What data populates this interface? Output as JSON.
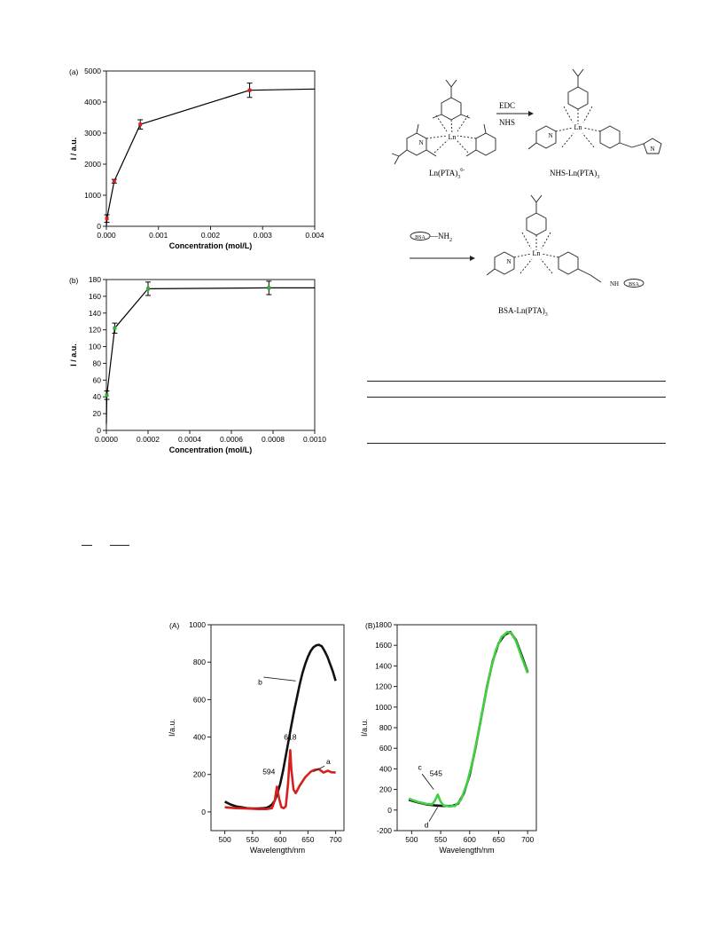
{
  "chart_data": [
    {
      "id": "a",
      "type": "line",
      "panel_label": "(a)",
      "xlabel": "Concentration (mol/L)",
      "ylabel": "I / a.u.",
      "xlim": [
        0,
        0.004
      ],
      "ylim": [
        0,
        5000
      ],
      "xticks": [
        "0.000",
        "0.001",
        "0.002",
        "0.003",
        "0.004"
      ],
      "yticks": [
        "0",
        "1000",
        "2000",
        "3000",
        "4000",
        "5000"
      ],
      "series": [
        {
          "x": [
            0.0,
            1e-05,
            0.00015,
            0.00065,
            0.00275,
            0.004
          ],
          "y": [
            0,
            250,
            1450,
            3280,
            4380,
            4420
          ],
          "err": [
            0,
            120,
            60,
            150,
            230,
            0
          ],
          "color": "#000000",
          "marker_color": "#d62020"
        }
      ]
    },
    {
      "id": "b",
      "type": "line",
      "panel_label": "(b)",
      "xlabel": "Concentration (mol/L)",
      "ylabel": "I / a.u.",
      "xlim": [
        0,
        0.001
      ],
      "ylim": [
        0,
        180
      ],
      "xticks": [
        "0.0000",
        "0.0002",
        "0.0004",
        "0.0006",
        "0.0008",
        "0.0010"
      ],
      "yticks": [
        "0",
        "20",
        "40",
        "60",
        "80",
        "100",
        "120",
        "140",
        "160",
        "180"
      ],
      "series": [
        {
          "x": [
            0.0,
            2e-06,
            4e-05,
            0.0002,
            0.00078,
            0.001
          ],
          "y": [
            8,
            42,
            122,
            169,
            170,
            170
          ],
          "err": [
            0,
            5,
            6,
            8,
            8,
            0
          ],
          "color": "#000000",
          "marker_color": "#30b030"
        }
      ]
    },
    {
      "id": "A",
      "type": "line",
      "panel_label": "(A)",
      "xlabel": "Wavelength/nm",
      "ylabel": "I/a.u.",
      "xlim": [
        475,
        715
      ],
      "ylim": [
        -100,
        1000
      ],
      "xticks": [
        "500",
        "550",
        "600",
        "650",
        "700"
      ],
      "yticks": [
        "0",
        "200",
        "400",
        "600",
        "800",
        "1000"
      ],
      "series": [
        {
          "name": "b",
          "color": "#111111",
          "x": [
            500,
            510,
            520,
            530,
            540,
            550,
            560,
            570,
            575,
            580,
            585,
            590,
            595,
            600,
            605,
            610,
            615,
            620,
            625,
            630,
            635,
            640,
            645,
            650,
            655,
            660,
            665,
            670,
            675,
            680,
            685,
            690,
            695,
            700
          ],
          "y": [
            55,
            40,
            30,
            25,
            20,
            18,
            18,
            20,
            22,
            28,
            40,
            60,
            100,
            150,
            220,
            300,
            380,
            460,
            540,
            610,
            680,
            740,
            790,
            830,
            860,
            880,
            890,
            893,
            885,
            860,
            830,
            790,
            750,
            700
          ]
        },
        {
          "name": "a",
          "color": "#d62020",
          "x": [
            500,
            520,
            540,
            560,
            575,
            585,
            590,
            594,
            598,
            602,
            606,
            610,
            614,
            618,
            620,
            624,
            628,
            635,
            645,
            655,
            662,
            670,
            678,
            686,
            692,
            700
          ],
          "y": [
            25,
            20,
            18,
            15,
            15,
            20,
            60,
            135,
            70,
            25,
            20,
            30,
            150,
            330,
            230,
            120,
            100,
            140,
            185,
            215,
            225,
            228,
            210,
            220,
            212,
            210
          ]
        }
      ],
      "annotations": [
        "594",
        "618",
        "a",
        "b"
      ]
    },
    {
      "id": "B",
      "type": "line",
      "panel_label": "(B)",
      "xlabel": "Wavelength/nm",
      "ylabel": "I/a.u.",
      "xlim": [
        475,
        715
      ],
      "ylim": [
        -200,
        1800
      ],
      "xticks": [
        "500",
        "550",
        "600",
        "650",
        "700"
      ],
      "yticks": [
        "-200",
        "0",
        "200",
        "400",
        "600",
        "800",
        "1000",
        "1200",
        "1400",
        "1600",
        "1800"
      ],
      "series": [
        {
          "name": "d",
          "color": "#111111",
          "x": [
            495,
            510,
            525,
            540,
            555,
            570,
            580,
            590,
            600,
            610,
            620,
            630,
            640,
            650,
            660,
            670,
            680,
            690,
            700
          ],
          "y": [
            100,
            75,
            55,
            45,
            40,
            40,
            60,
            160,
            340,
            600,
            900,
            1200,
            1450,
            1620,
            1700,
            1730,
            1650,
            1500,
            1340
          ]
        },
        {
          "name": "c",
          "color": "#40d040",
          "x": [
            495,
            510,
            525,
            535,
            540,
            545,
            550,
            555,
            565,
            575,
            585,
            595,
            605,
            615,
            625,
            635,
            645,
            655,
            665,
            672,
            680,
            690,
            700
          ],
          "y": [
            110,
            80,
            60,
            55,
            90,
            150,
            80,
            45,
            35,
            40,
            100,
            250,
            470,
            750,
            1050,
            1330,
            1550,
            1680,
            1730,
            1720,
            1640,
            1480,
            1330
          ]
        }
      ],
      "annotations": [
        "545",
        "c",
        "d"
      ]
    }
  ],
  "scheme": {
    "reagents_1": "EDC",
    "reagents_2": "NHS",
    "label_1": "Ln(PTA)",
    "label_1_sub": "3",
    "label_1_sup": "6-",
    "label_2": "NHS-Ln(PTA)",
    "label_2_sub": "3",
    "label_3": "BSA-Ln(PTA)",
    "label_3_sub": "3",
    "reagent_3_bsa": "BSA",
    "reagent_3_amine": "—NH",
    "reagent_3_amine_sub": "2",
    "metal": "Ln",
    "nitrogen": "N",
    "nh": "NH",
    "bsa_tag": "BSA"
  }
}
